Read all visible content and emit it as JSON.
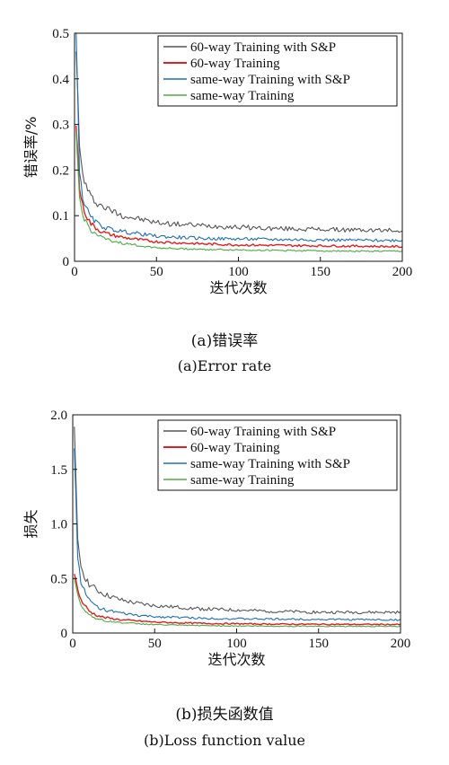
{
  "chart_data": [
    {
      "type": "line",
      "ylabel": "错误率/%",
      "xlabel": "迭代次数",
      "xlim": [
        0,
        200
      ],
      "ylim": [
        0,
        0.5
      ],
      "xticks": [
        "0",
        "50",
        "100",
        "150",
        "200"
      ],
      "yticks": [
        "0",
        "0.1",
        "0.2",
        "0.3",
        "0.4",
        "0.5"
      ],
      "legend_position": "top-right",
      "caption_zh": "(a)错误率",
      "caption_en": "(a)Error rate",
      "series": [
        {
          "name": "60-way Training with S&P",
          "color": "#555555",
          "x": [
            1,
            3,
            5,
            8,
            10,
            15,
            20,
            30,
            40,
            50,
            60,
            80,
            100,
            120,
            150,
            180,
            200
          ],
          "y": [
            0.47,
            0.25,
            0.19,
            0.155,
            0.14,
            0.125,
            0.115,
            0.1,
            0.092,
            0.085,
            0.082,
            0.078,
            0.075,
            0.072,
            0.07,
            0.068,
            0.068
          ]
        },
        {
          "name": "60-way Training",
          "color": "#e02020",
          "x": [
            1,
            3,
            5,
            8,
            10,
            15,
            20,
            30,
            40,
            50,
            60,
            80,
            100,
            120,
            150,
            180,
            200
          ],
          "y": [
            0.3,
            0.16,
            0.12,
            0.095,
            0.082,
            0.068,
            0.06,
            0.052,
            0.047,
            0.043,
            0.041,
            0.038,
            0.036,
            0.035,
            0.034,
            0.033,
            0.032
          ]
        },
        {
          "name": "same-way Training with S&P",
          "color": "#1f6fb4",
          "x": [
            1,
            3,
            5,
            8,
            10,
            15,
            20,
            30,
            40,
            50,
            60,
            80,
            100,
            120,
            150,
            180,
            200
          ],
          "y": [
            0.5,
            0.2,
            0.14,
            0.11,
            0.095,
            0.08,
            0.072,
            0.065,
            0.06,
            0.055,
            0.053,
            0.05,
            0.049,
            0.048,
            0.047,
            0.046,
            0.046
          ]
        },
        {
          "name": "same-way Training",
          "color": "#4daa46",
          "x": [
            1,
            3,
            5,
            8,
            10,
            15,
            20,
            30,
            40,
            50,
            60,
            80,
            100,
            120,
            150,
            180,
            200
          ],
          "y": [
            0.28,
            0.14,
            0.1,
            0.08,
            0.068,
            0.055,
            0.047,
            0.039,
            0.034,
            0.03,
            0.028,
            0.026,
            0.025,
            0.024,
            0.023,
            0.022,
            0.022
          ]
        }
      ]
    },
    {
      "type": "line",
      "ylabel": "损失",
      "xlabel": "迭代次数",
      "xlim": [
        0,
        200
      ],
      "ylim": [
        0,
        2.0
      ],
      "xticks": [
        "0",
        "50",
        "100",
        "150",
        "200"
      ],
      "yticks": [
        "0",
        "0.5",
        "1.0",
        "1.5",
        "2.0"
      ],
      "legend_position": "top-right",
      "caption_zh": "(b)损失函数值",
      "caption_en": "(b)Loss function value",
      "series": [
        {
          "name": "60-way Training with S&P",
          "color": "#555555",
          "x": [
            1,
            3,
            5,
            8,
            10,
            15,
            20,
            30,
            40,
            50,
            60,
            80,
            100,
            120,
            150,
            180,
            200
          ],
          "y": [
            1.85,
            0.85,
            0.62,
            0.5,
            0.45,
            0.39,
            0.35,
            0.3,
            0.27,
            0.25,
            0.24,
            0.22,
            0.21,
            0.2,
            0.19,
            0.19,
            0.19
          ]
        },
        {
          "name": "60-way Training",
          "color": "#e02020",
          "x": [
            1,
            3,
            5,
            8,
            10,
            15,
            20,
            30,
            40,
            50,
            60,
            80,
            100,
            120,
            150,
            180,
            200
          ],
          "y": [
            0.55,
            0.4,
            0.3,
            0.24,
            0.2,
            0.16,
            0.14,
            0.12,
            0.11,
            0.1,
            0.095,
            0.088,
            0.085,
            0.082,
            0.08,
            0.079,
            0.078
          ]
        },
        {
          "name": "same-way Training with S&P",
          "color": "#1f6fb4",
          "x": [
            1,
            3,
            5,
            8,
            10,
            15,
            20,
            30,
            40,
            50,
            60,
            80,
            100,
            120,
            150,
            180,
            200
          ],
          "y": [
            1.7,
            0.7,
            0.48,
            0.35,
            0.3,
            0.24,
            0.21,
            0.18,
            0.16,
            0.15,
            0.145,
            0.135,
            0.13,
            0.128,
            0.125,
            0.123,
            0.12
          ]
        },
        {
          "name": "same-way Training",
          "color": "#4daa46",
          "x": [
            1,
            3,
            5,
            8,
            10,
            15,
            20,
            30,
            40,
            50,
            60,
            80,
            100,
            120,
            150,
            180,
            200
          ],
          "y": [
            0.5,
            0.35,
            0.26,
            0.2,
            0.17,
            0.13,
            0.11,
            0.095,
            0.085,
            0.078,
            0.073,
            0.068,
            0.065,
            0.063,
            0.062,
            0.061,
            0.06
          ]
        }
      ]
    }
  ]
}
